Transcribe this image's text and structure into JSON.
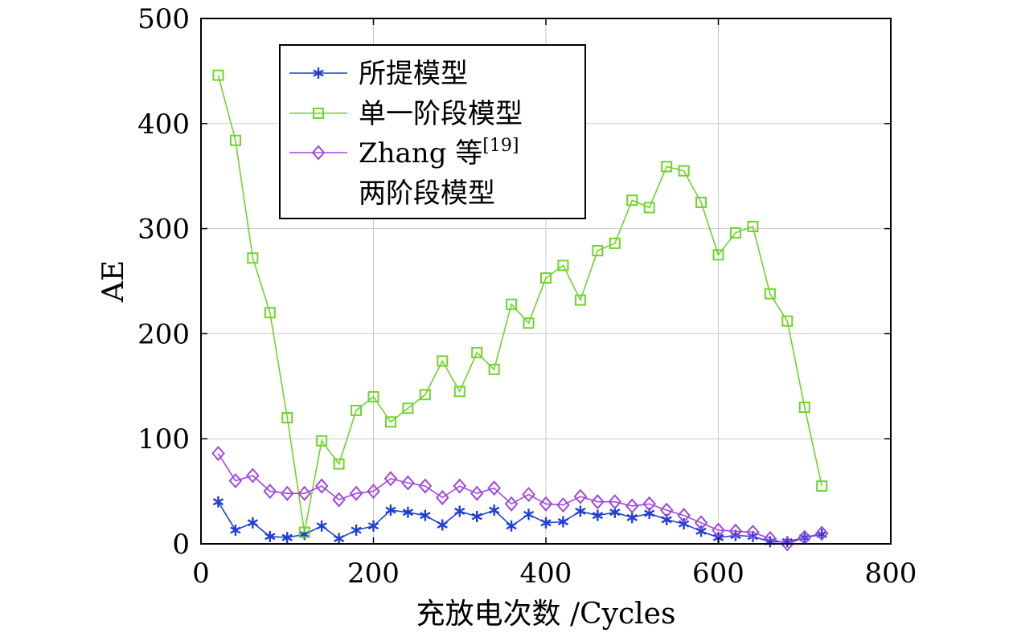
{
  "chart_data": {
    "type": "line",
    "xlabel": "充放电次数 /Cycles",
    "ylabel": "AE",
    "xlim": [
      0,
      800
    ],
    "ylim": [
      0,
      500
    ],
    "xticks": [
      "0",
      "200",
      "400",
      "600",
      "800"
    ],
    "yticks": [
      "0",
      "100",
      "200",
      "300",
      "400",
      "500"
    ],
    "grid": true,
    "legend_position": "top-left",
    "x": [
      20,
      40,
      60,
      80,
      100,
      120,
      140,
      160,
      180,
      200,
      220,
      240,
      260,
      280,
      300,
      320,
      340,
      360,
      380,
      400,
      420,
      440,
      460,
      480,
      500,
      520,
      540,
      560,
      580,
      600,
      620,
      640,
      660,
      680,
      700,
      720
    ],
    "series": [
      {
        "name": "所提模型",
        "color": "#1f3fd6",
        "marker": "asterisk",
        "values": [
          40,
          13,
          20,
          7,
          6,
          9,
          17,
          5,
          13,
          17,
          32,
          30,
          27,
          18,
          31,
          26,
          32,
          17,
          28,
          20,
          21,
          31,
          27,
          30,
          25,
          29,
          23,
          19,
          12,
          6,
          8,
          7,
          2,
          2,
          6,
          9
        ]
      },
      {
        "name": "单一阶段模型",
        "color": "#6fd42a",
        "marker": "square",
        "values": [
          446,
          384,
          272,
          220,
          120,
          11,
          98,
          76,
          127,
          140,
          116,
          129,
          142,
          174,
          145,
          182,
          166,
          228,
          210,
          253,
          265,
          232,
          279,
          286,
          327,
          320,
          359,
          355,
          325,
          275,
          296,
          302,
          238,
          212,
          130,
          55
        ]
      },
      {
        "name": "Zhang 等",
        "name_superscript": "[19]",
        "name_line2": "两阶段模型",
        "color": "#a048e0",
        "marker": "diamond",
        "values": [
          86,
          60,
          65,
          50,
          48,
          48,
          55,
          42,
          48,
          50,
          62,
          58,
          55,
          44,
          55,
          48,
          53,
          38,
          47,
          38,
          37,
          45,
          40,
          40,
          36,
          38,
          32,
          27,
          20,
          13,
          12,
          11,
          5,
          0,
          6,
          10
        ]
      }
    ]
  }
}
